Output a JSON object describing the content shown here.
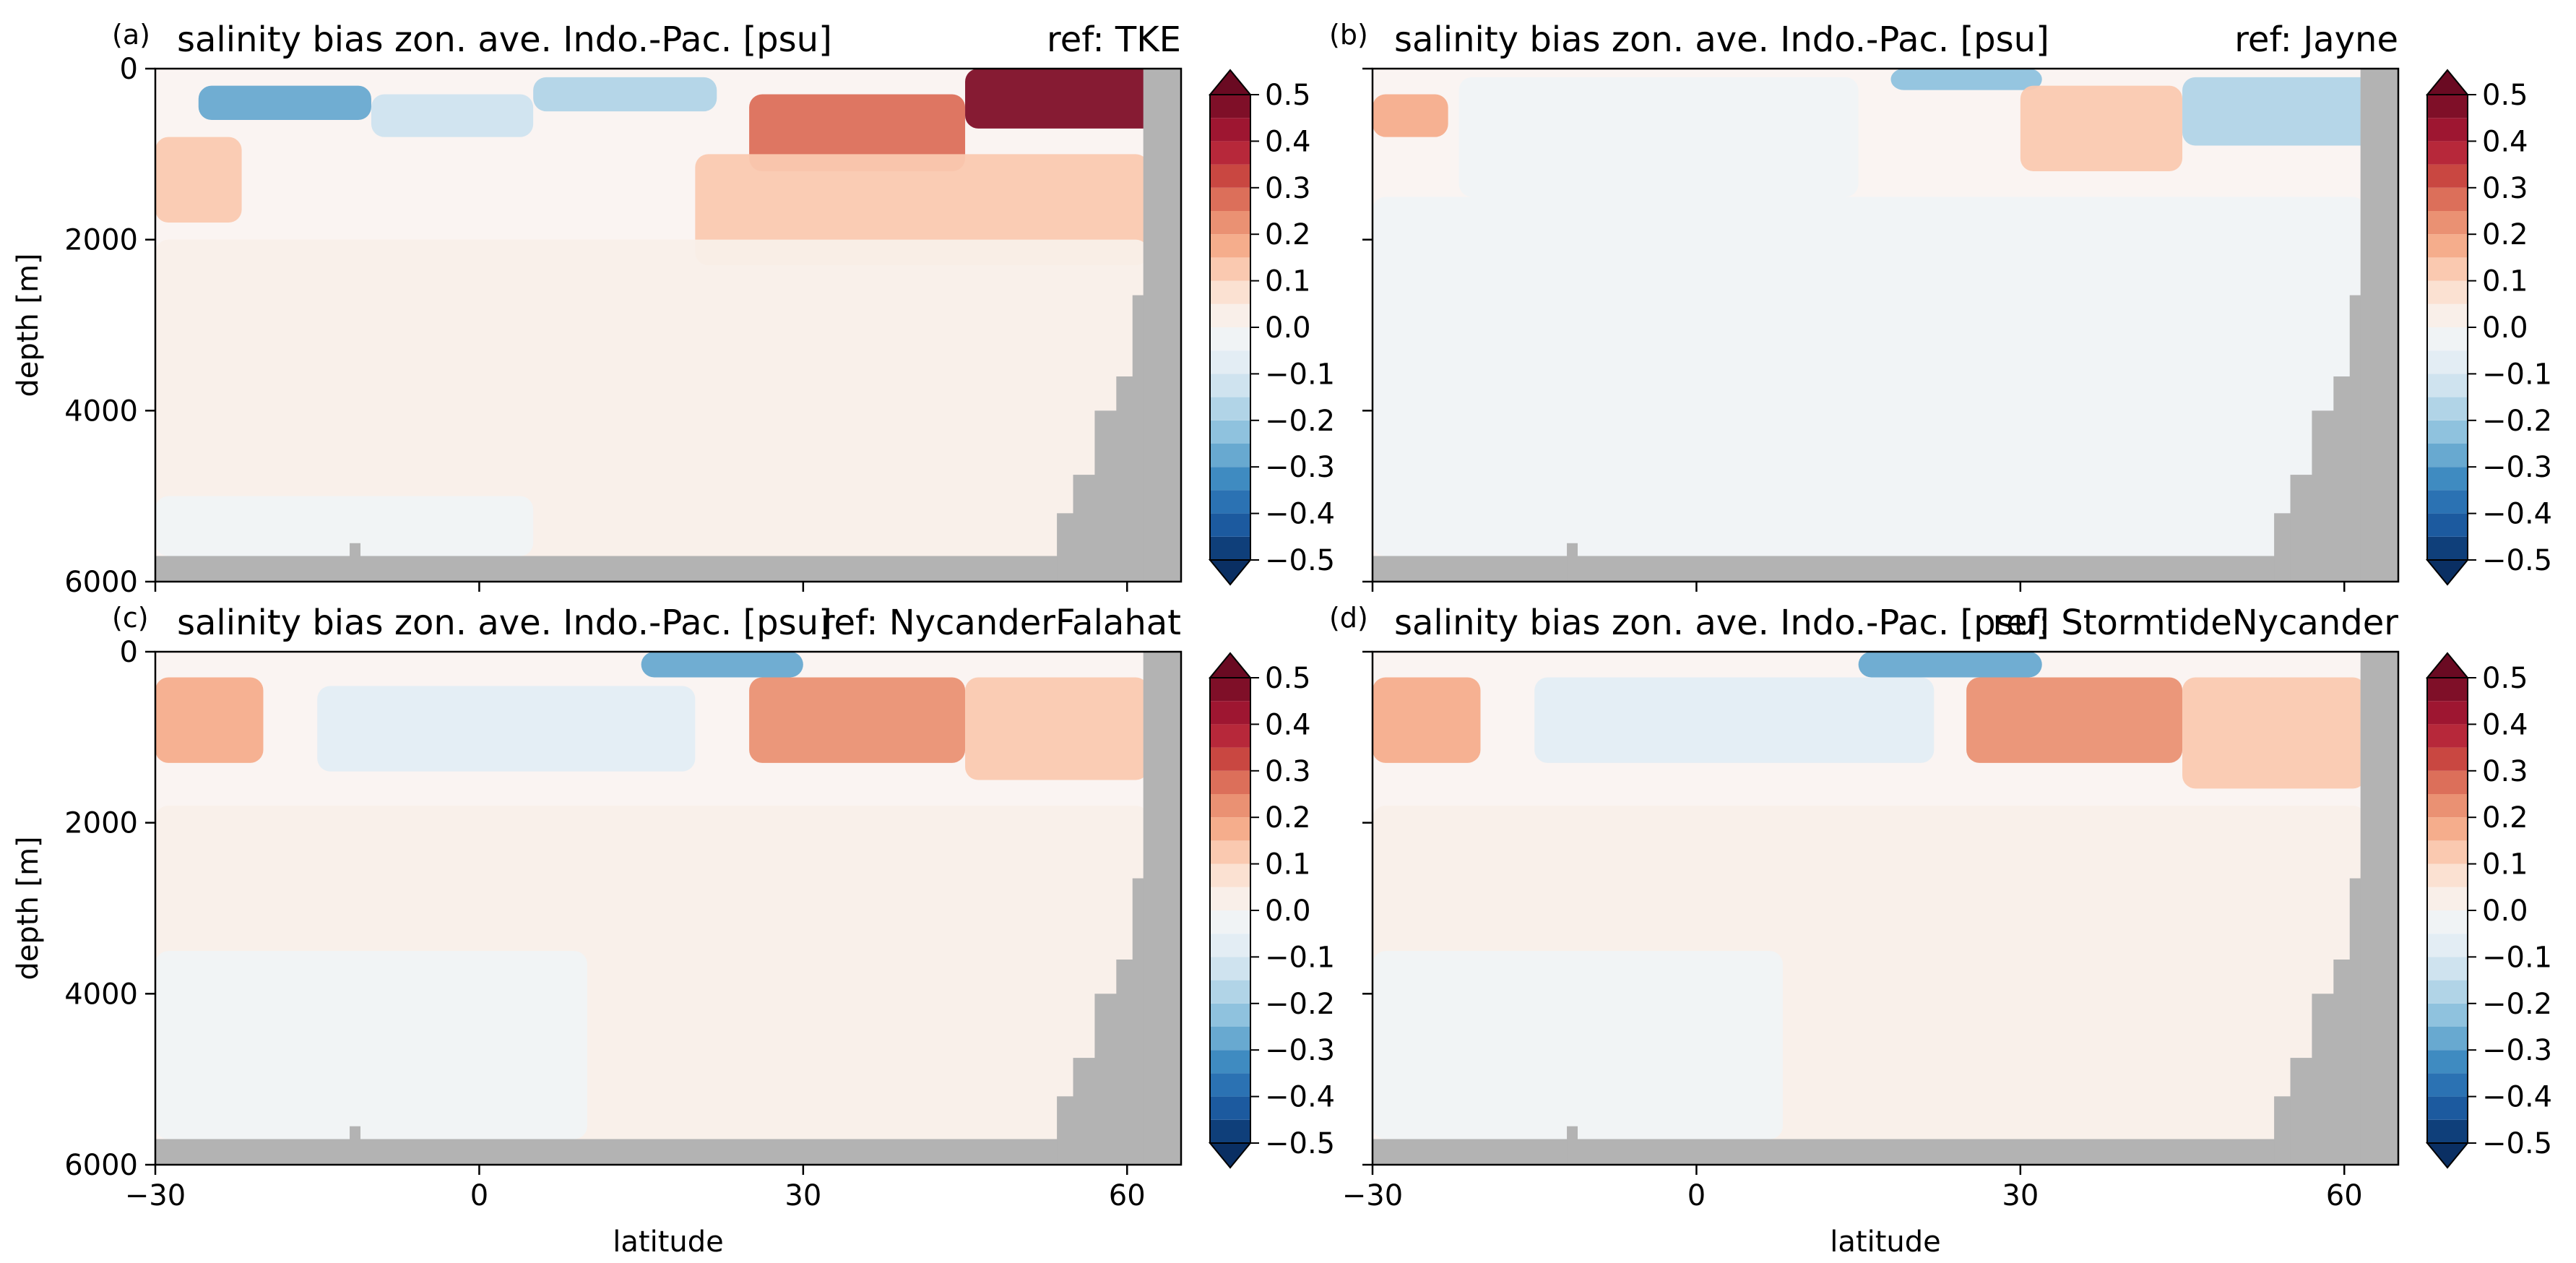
{
  "chart_data": [
    {
      "type": "heatmap",
      "panel_label": "(a)",
      "title": "salinity bias zon. ave. Indo.-Pac. [psu]",
      "ref_label": "ref: TKE",
      "xlabel": "",
      "ylabel": "depth [m]",
      "xlim": [
        -30,
        65
      ],
      "ylim": [
        6000,
        0
      ],
      "xticks": [
        "−30",
        "0",
        "30",
        "60"
      ],
      "show_xticklabels": false,
      "yticks": [
        "0",
        "2000",
        "4000",
        "6000"
      ],
      "show_yticklabels": true,
      "bias_regions": [
        {
          "x": [
            -26,
            -10
          ],
          "z": [
            200,
            600
          ],
          "value": -0.3
        },
        {
          "x": [
            -10,
            5
          ],
          "z": [
            300,
            800
          ],
          "value": -0.15
        },
        {
          "x": [
            5,
            22
          ],
          "z": [
            100,
            500
          ],
          "value": -0.2
        },
        {
          "x": [
            25,
            45
          ],
          "z": [
            300,
            1200
          ],
          "value": 0.25
        },
        {
          "x": [
            45,
            64
          ],
          "z": [
            0,
            700
          ],
          "value": 0.45
        },
        {
          "x": [
            -30,
            -22
          ],
          "z": [
            800,
            1800
          ],
          "value": 0.1
        },
        {
          "x": [
            20,
            62
          ],
          "z": [
            1000,
            2300
          ],
          "value": 0.1
        },
        {
          "x": [
            -30,
            62
          ],
          "z": [
            2000,
            5700
          ],
          "value": 0.03
        },
        {
          "x": [
            -30,
            5
          ],
          "z": [
            5000,
            5700
          ],
          "value": -0.03
        }
      ]
    },
    {
      "type": "heatmap",
      "panel_label": "(b)",
      "title": "salinity bias zon. ave. Indo.-Pac. [psu]",
      "ref_label": "ref: Jayne",
      "xlabel": "",
      "ylabel": "",
      "xlim": [
        -30,
        65
      ],
      "ylim": [
        6000,
        0
      ],
      "xticks": [
        "−30",
        "0",
        "30",
        "60"
      ],
      "show_xticklabels": false,
      "yticks": [
        "0",
        "2000",
        "4000",
        "6000"
      ],
      "show_yticklabels": false,
      "bias_regions": [
        {
          "x": [
            -30,
            -23
          ],
          "z": [
            300,
            800
          ],
          "value": 0.15
        },
        {
          "x": [
            -22,
            15
          ],
          "z": [
            100,
            1500
          ],
          "value": -0.05
        },
        {
          "x": [
            18,
            32
          ],
          "z": [
            0,
            250
          ],
          "value": -0.25
        },
        {
          "x": [
            30,
            45
          ],
          "z": [
            200,
            1200
          ],
          "value": 0.1
        },
        {
          "x": [
            45,
            64
          ],
          "z": [
            100,
            900
          ],
          "value": -0.2
        },
        {
          "x": [
            -30,
            62
          ],
          "z": [
            1500,
            5700
          ],
          "value": -0.02
        },
        {
          "x": [
            -30,
            5
          ],
          "z": [
            4500,
            5700
          ],
          "value": -0.05
        }
      ]
    },
    {
      "type": "heatmap",
      "panel_label": "(c)",
      "title": "salinity bias zon. ave. Indo.-Pac. [psu]",
      "ref_label": "ref: NycanderFalahat",
      "xlabel": "latitude",
      "ylabel": "depth [m]",
      "xlim": [
        -30,
        65
      ],
      "ylim": [
        6000,
        0
      ],
      "xticks": [
        "−30",
        "0",
        "30",
        "60"
      ],
      "show_xticklabels": true,
      "yticks": [
        "0",
        "2000",
        "4000",
        "6000"
      ],
      "show_yticklabels": true,
      "bias_regions": [
        {
          "x": [
            -30,
            -20
          ],
          "z": [
            300,
            1300
          ],
          "value": 0.15
        },
        {
          "x": [
            -15,
            20
          ],
          "z": [
            400,
            1400
          ],
          "value": -0.08
        },
        {
          "x": [
            15,
            30
          ],
          "z": [
            0,
            300
          ],
          "value": -0.3
        },
        {
          "x": [
            25,
            45
          ],
          "z": [
            300,
            1300
          ],
          "value": 0.22
        },
        {
          "x": [
            45,
            62
          ],
          "z": [
            300,
            1500
          ],
          "value": 0.12
        },
        {
          "x": [
            -30,
            62
          ],
          "z": [
            1800,
            5700
          ],
          "value": 0.03
        },
        {
          "x": [
            -30,
            10
          ],
          "z": [
            3500,
            5700
          ],
          "value": -0.02
        }
      ]
    },
    {
      "type": "heatmap",
      "panel_label": "(d)",
      "title": "salinity bias zon. ave. Indo.-Pac. [psu]",
      "ref_label": "ref: StormtideNycander",
      "xlabel": "latitude",
      "ylabel": "",
      "xlim": [
        -30,
        65
      ],
      "ylim": [
        6000,
        0
      ],
      "xticks": [
        "−30",
        "0",
        "30",
        "60"
      ],
      "show_xticklabels": true,
      "yticks": [
        "0",
        "2000",
        "4000",
        "6000"
      ],
      "show_yticklabels": false,
      "bias_regions": [
        {
          "x": [
            -30,
            -20
          ],
          "z": [
            300,
            1300
          ],
          "value": 0.15
        },
        {
          "x": [
            -15,
            22
          ],
          "z": [
            300,
            1300
          ],
          "value": -0.08
        },
        {
          "x": [
            15,
            32
          ],
          "z": [
            0,
            300
          ],
          "value": -0.3
        },
        {
          "x": [
            25,
            45
          ],
          "z": [
            300,
            1300
          ],
          "value": 0.22
        },
        {
          "x": [
            45,
            62
          ],
          "z": [
            300,
            1600
          ],
          "value": 0.12
        },
        {
          "x": [
            -30,
            62
          ],
          "z": [
            1800,
            5700
          ],
          "value": 0.03
        },
        {
          "x": [
            -30,
            8
          ],
          "z": [
            3500,
            5700
          ],
          "value": -0.02
        }
      ]
    }
  ],
  "colorbar": {
    "levels": [
      -0.5,
      -0.45,
      -0.4,
      -0.35,
      -0.3,
      -0.25,
      -0.2,
      -0.15,
      -0.1,
      -0.05,
      0.0,
      0.05,
      0.1,
      0.15,
      0.2,
      0.25,
      0.3,
      0.35,
      0.4,
      0.45,
      0.5
    ],
    "colors": [
      "#0f3f7a",
      "#1c5a9f",
      "#2b72b3",
      "#3f8bc1",
      "#68a9d0",
      "#8fc2de",
      "#b1d4e7",
      "#cfe3ef",
      "#e3edf4",
      "#f0f3f5",
      "#f9efe9",
      "#fbe1d2",
      "#fac9b0",
      "#f5ad8c",
      "#ea9173",
      "#dc6f5a",
      "#c94741",
      "#b7283a",
      "#9e1631",
      "#7f0f28"
    ],
    "under_color": "#0a2f63",
    "over_color": "#6a0a22",
    "tick_labels": [
      "0.5",
      "0.4",
      "0.3",
      "0.2",
      "0.1",
      "0.0",
      "−0.1",
      "−0.2",
      "−0.3",
      "−0.4",
      "−0.5"
    ]
  },
  "land_color": "#b3b3b3"
}
